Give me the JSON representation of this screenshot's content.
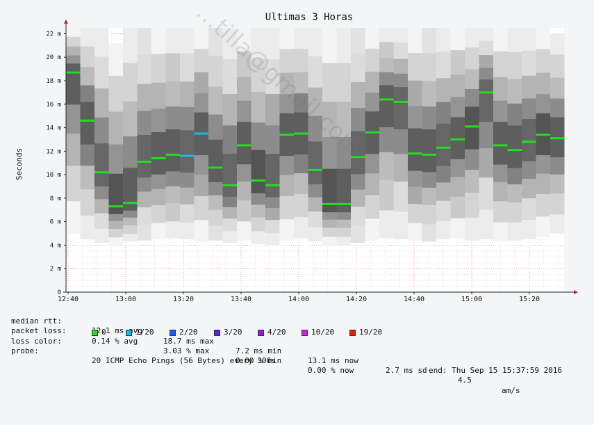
{
  "chart_data": {
    "type": "smokeping",
    "title": "Ultimas 3 Horas",
    "ylabel": "Seconds",
    "ylim": [
      0,
      22.5
    ],
    "yticks": [
      {
        "v": 0,
        "label": "0"
      },
      {
        "v": 2,
        "label": "2 m"
      },
      {
        "v": 4,
        "label": "4 m"
      },
      {
        "v": 6,
        "label": "6 m"
      },
      {
        "v": 8,
        "label": "8 m"
      },
      {
        "v": 10,
        "label": "10 m"
      },
      {
        "v": 12,
        "label": "12 m"
      },
      {
        "v": 14,
        "label": "14 m"
      },
      {
        "v": 16,
        "label": "16 m"
      },
      {
        "v": 18,
        "label": "18 m"
      },
      {
        "v": 20,
        "label": "20 m"
      },
      {
        "v": 22,
        "label": "22 m"
      }
    ],
    "xticks": [
      "12:40",
      "13:00",
      "13:20",
      "13:40",
      "14:00",
      "14:20",
      "14:40",
      "15:00",
      "15:20"
    ],
    "median": [
      18.7,
      14.6,
      10.2,
      7.3,
      7.6,
      11.1,
      11.4,
      11.7,
      11.6,
      13.5,
      10.6,
      9.1,
      12.5,
      9.5,
      9.1,
      13.4,
      13.5,
      10.4,
      7.5,
      7.5,
      11.5,
      13.6,
      16.4,
      16.2,
      11.8,
      11.7,
      12.3,
      13.0,
      14.1,
      17.0,
      12.5,
      12.1,
      12.8,
      13.4,
      13.1
    ],
    "loss": [
      "0",
      "0",
      "0",
      "0",
      "0",
      "0",
      "0",
      "0",
      "1/20",
      "1/20",
      "0",
      "0",
      "0",
      "0",
      "0",
      "0",
      "0",
      "0",
      "0",
      "0",
      "0",
      "0",
      "0",
      "0",
      "0",
      "0",
      "0",
      "0",
      "0",
      "0",
      "0",
      "0",
      "0",
      "0",
      "0"
    ],
    "range": [
      [
        5.0,
        22.5
      ],
      [
        4.5,
        22.5
      ],
      [
        4.2,
        22.5
      ],
      [
        4.0,
        21.2
      ],
      [
        4.3,
        22.5
      ],
      [
        4.4,
        22.5
      ],
      [
        4.5,
        22.5
      ],
      [
        4.6,
        22.5
      ],
      [
        4.5,
        22.5
      ],
      [
        4.3,
        22.5
      ],
      [
        4.4,
        22.5
      ],
      [
        4.2,
        22.5
      ],
      [
        4.4,
        22.5
      ],
      [
        4.1,
        22.5
      ],
      [
        4.0,
        22.5
      ],
      [
        4.4,
        22.5
      ],
      [
        4.6,
        22.5
      ],
      [
        4.3,
        22.5
      ],
      [
        4.0,
        22.5
      ],
      [
        4.0,
        22.5
      ],
      [
        4.2,
        22.5
      ],
      [
        4.4,
        22.5
      ],
      [
        4.6,
        22.5
      ],
      [
        4.5,
        22.5
      ],
      [
        4.4,
        22.5
      ],
      [
        4.3,
        22.5
      ],
      [
        4.5,
        22.5
      ],
      [
        4.6,
        22.5
      ],
      [
        4.4,
        22.5
      ],
      [
        4.5,
        22.5
      ],
      [
        4.3,
        22.5
      ],
      [
        4.4,
        22.5
      ],
      [
        4.5,
        22.5
      ],
      [
        4.7,
        22.5
      ],
      [
        5.0,
        22.0
      ]
    ]
  },
  "stats": {
    "median_rtt": {
      "label": "median rtt:",
      "avg": "12.1 ms avg",
      "max": "18.7 ms max",
      "min": "7.2 ms min",
      "now": "13.1 ms now",
      "sd": "2.7 ms sd",
      "am": "4.5",
      "am_unit": "am/s"
    },
    "packet_loss": {
      "label": "packet loss:",
      "avg": "0.14 % avg",
      "max": "3.03 % max",
      "min": "0.00 % min",
      "now": "0.00 % now"
    },
    "loss_color": {
      "label": "loss color:",
      "items": [
        {
          "label": "0",
          "color": "#22dd22"
        },
        {
          "label": "1/20",
          "color": "#18b8e8"
        },
        {
          "label": "2/20",
          "color": "#1860e8"
        },
        {
          "label": "3/20",
          "color": "#6020e8"
        },
        {
          "label": "4/20",
          "color": "#9818d8"
        },
        {
          "label": "10/20",
          "color": "#d820d8"
        },
        {
          "label": "19/20",
          "color": "#e02010"
        }
      ]
    },
    "probe": {
      "label": "probe:",
      "text": "20 ICMP Echo Pings (56 Bytes) every 300s",
      "end": "end: Thu Sep 15 15:37:59 2016"
    }
  }
}
